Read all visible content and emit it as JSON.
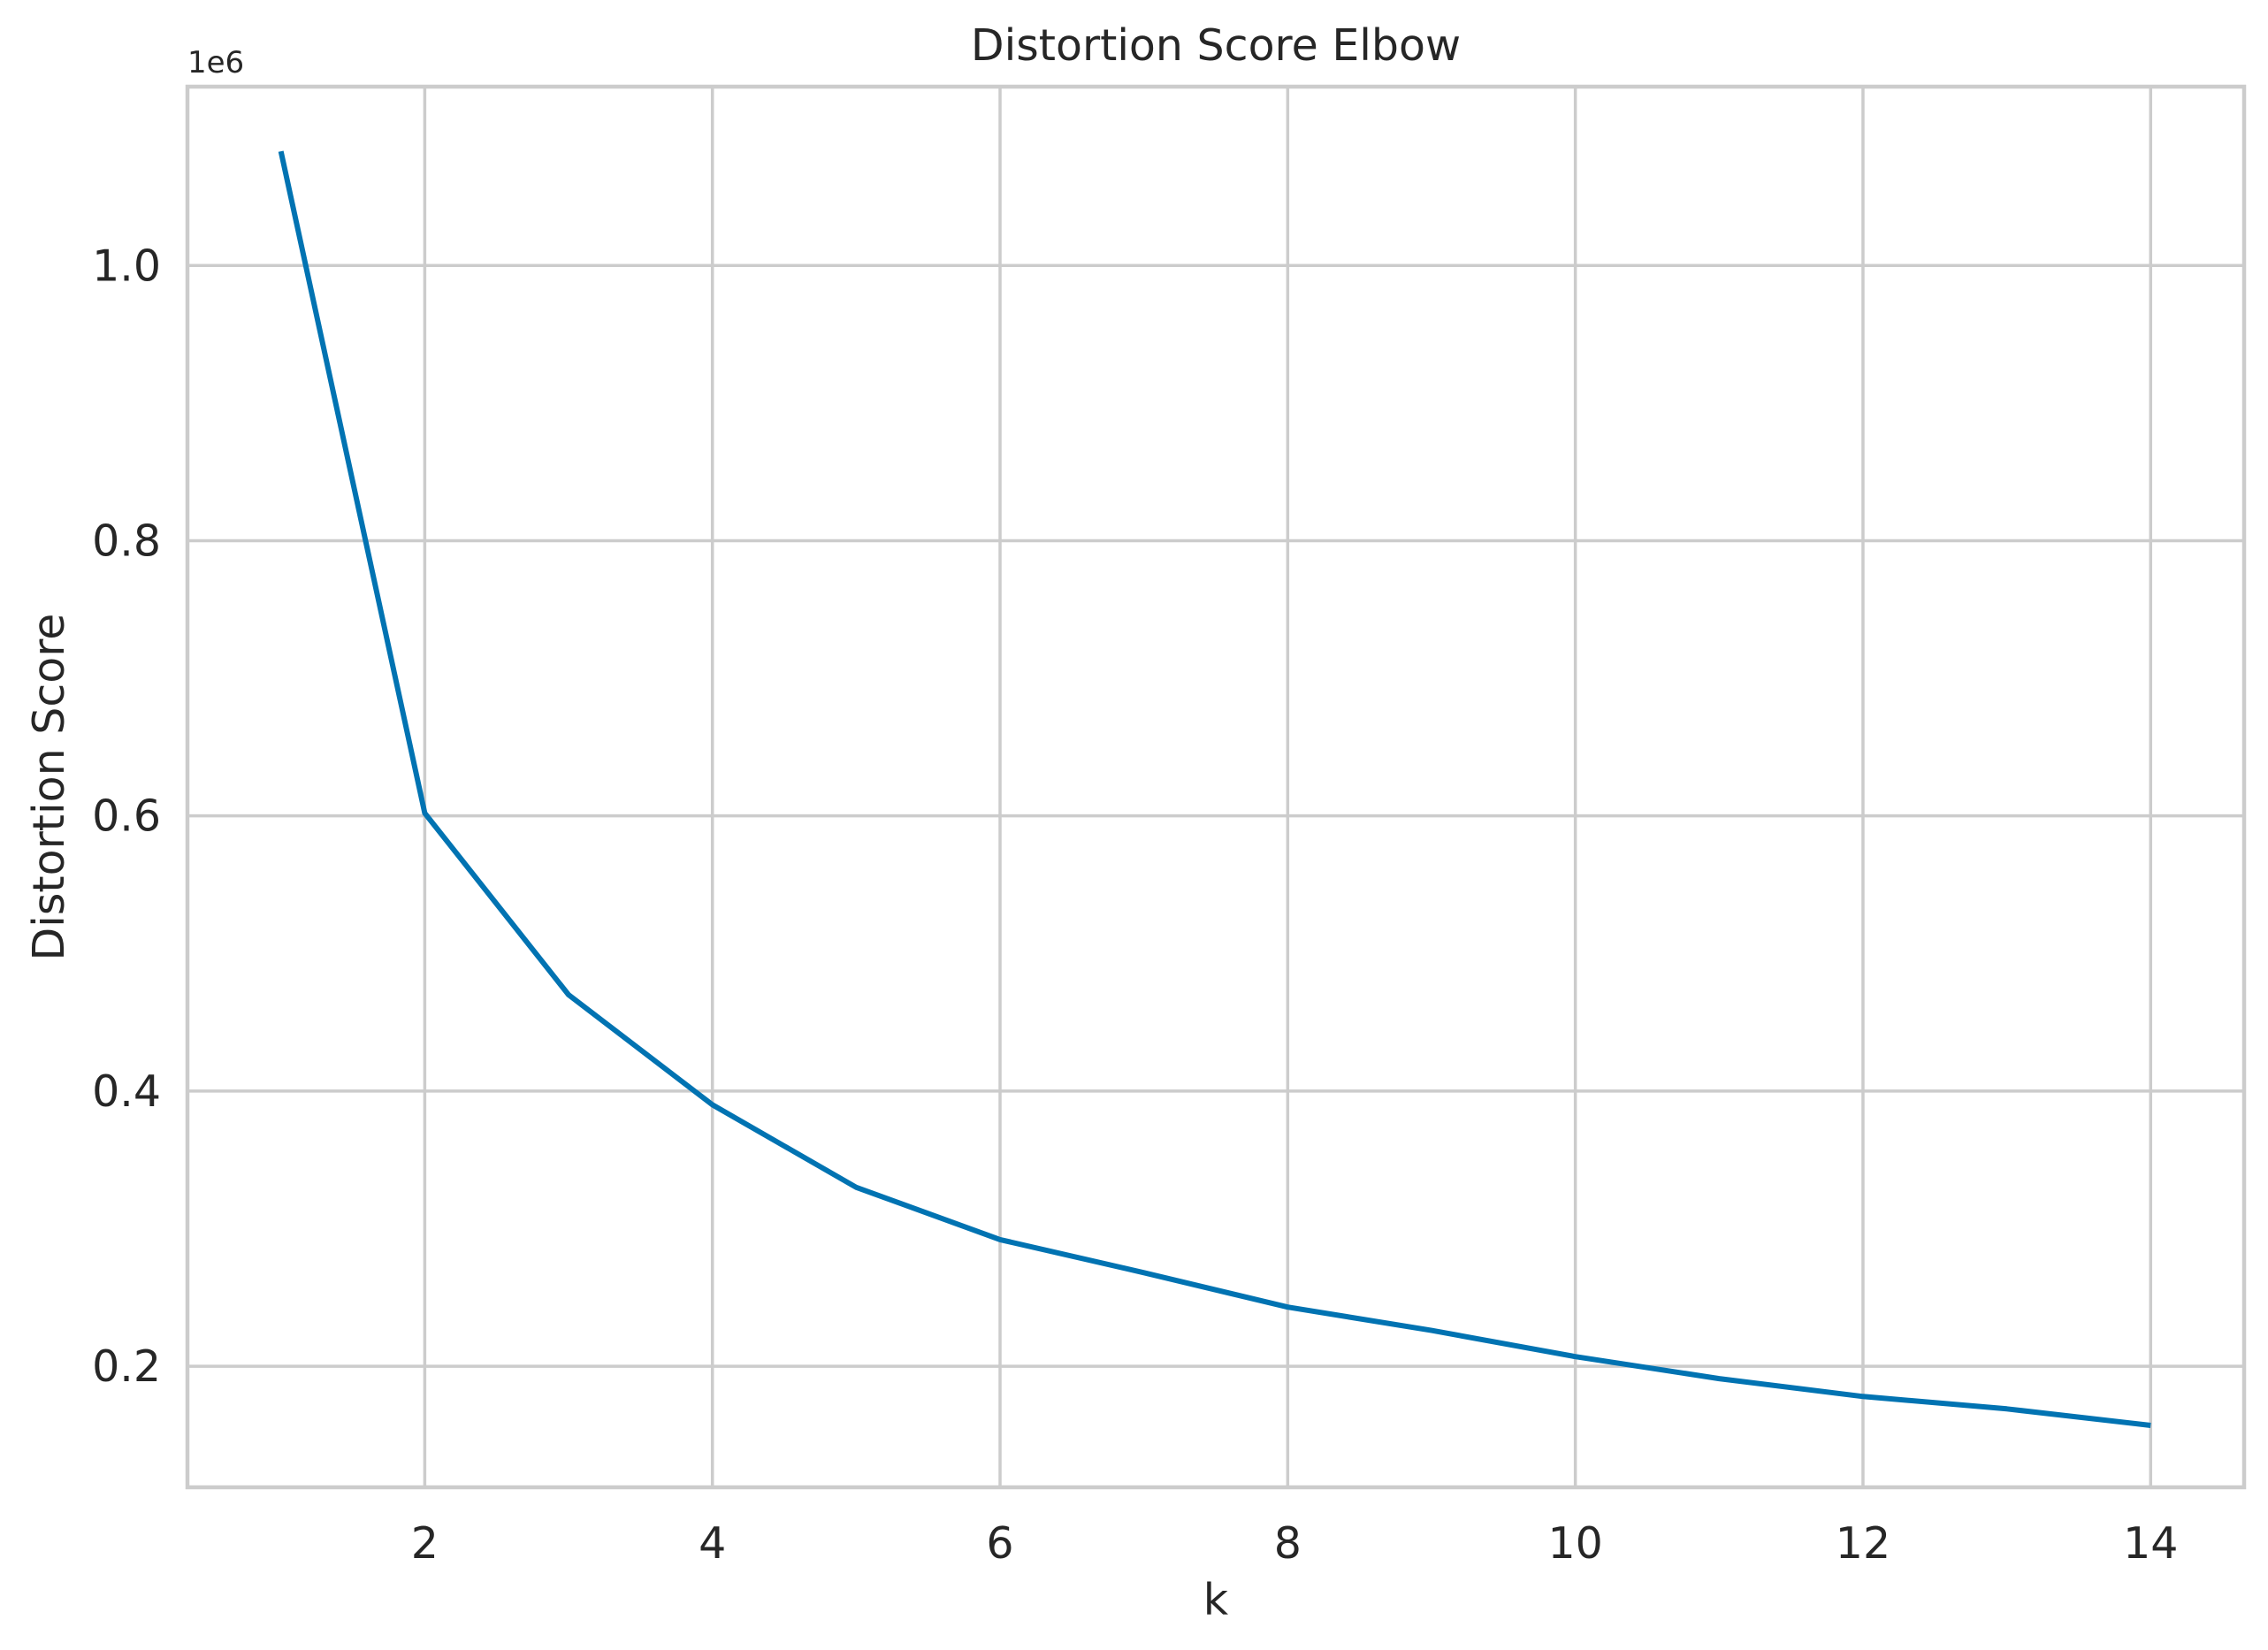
{
  "chart_data": {
    "type": "line",
    "title": "Distortion Score Elbow",
    "xlabel": "k",
    "ylabel": "Distortion Score",
    "y_offset_label": "1e6",
    "x": [
      1,
      2,
      3,
      4,
      5,
      6,
      7,
      8,
      9,
      10,
      11,
      12,
      13,
      14
    ],
    "series": [
      {
        "values": [
          1083000,
          602000,
          470000,
          390000,
          330000,
          292000,
          268000,
          243000,
          226000,
          207000,
          191000,
          178000,
          169000,
          157000
        ],
        "color": "#0173b2"
      }
    ],
    "xlim": [
      0.35,
      14.65
    ],
    "ylim": [
      112000,
      1130000
    ],
    "x_ticks": [
      2,
      4,
      6,
      8,
      10,
      12,
      14
    ],
    "x_tick_labels": [
      "2",
      "4",
      "6",
      "8",
      "10",
      "12",
      "14"
    ],
    "y_ticks": [
      200000,
      400000,
      600000,
      800000,
      1000000
    ],
    "y_tick_labels": [
      "0.2",
      "0.4",
      "0.6",
      "0.8",
      "1.0"
    ],
    "grid": true,
    "style": {
      "grid_color": "#cccccc",
      "frame_color": "#cccccc",
      "text_color": "#262626",
      "background": "#ffffff"
    }
  }
}
